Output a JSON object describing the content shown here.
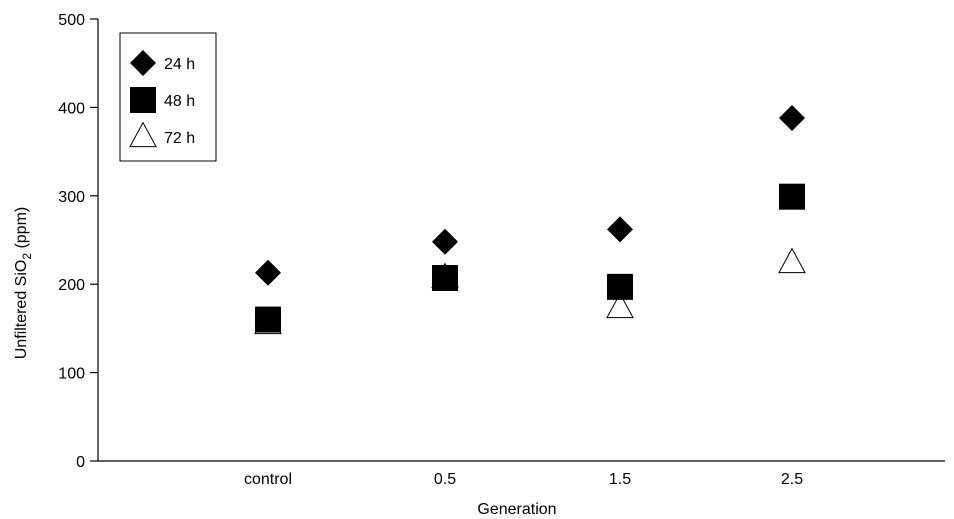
{
  "chart_data": {
    "type": "scatter",
    "title": "",
    "xlabel": "Generation",
    "ylabel_main": "Unfiltered SiO",
    "ylabel_sub": "2",
    "ylabel_tail": " (ppm)",
    "categories": [
      "control",
      "0.5",
      "1.5",
      "2.5"
    ],
    "ylim": [
      0,
      500
    ],
    "yticks": [
      0,
      100,
      200,
      300,
      400,
      500
    ],
    "grid": false,
    "legend_position": "top-left",
    "series": [
      {
        "name": "24 h",
        "marker": "diamond-filled",
        "values": [
          213,
          248,
          262,
          388
        ]
      },
      {
        "name": "48 h",
        "marker": "square-filled",
        "values": [
          160,
          207,
          197,
          299
        ]
      },
      {
        "name": "72 h",
        "marker": "triangle-open",
        "values": [
          155,
          207,
          173,
          224
        ]
      }
    ]
  }
}
